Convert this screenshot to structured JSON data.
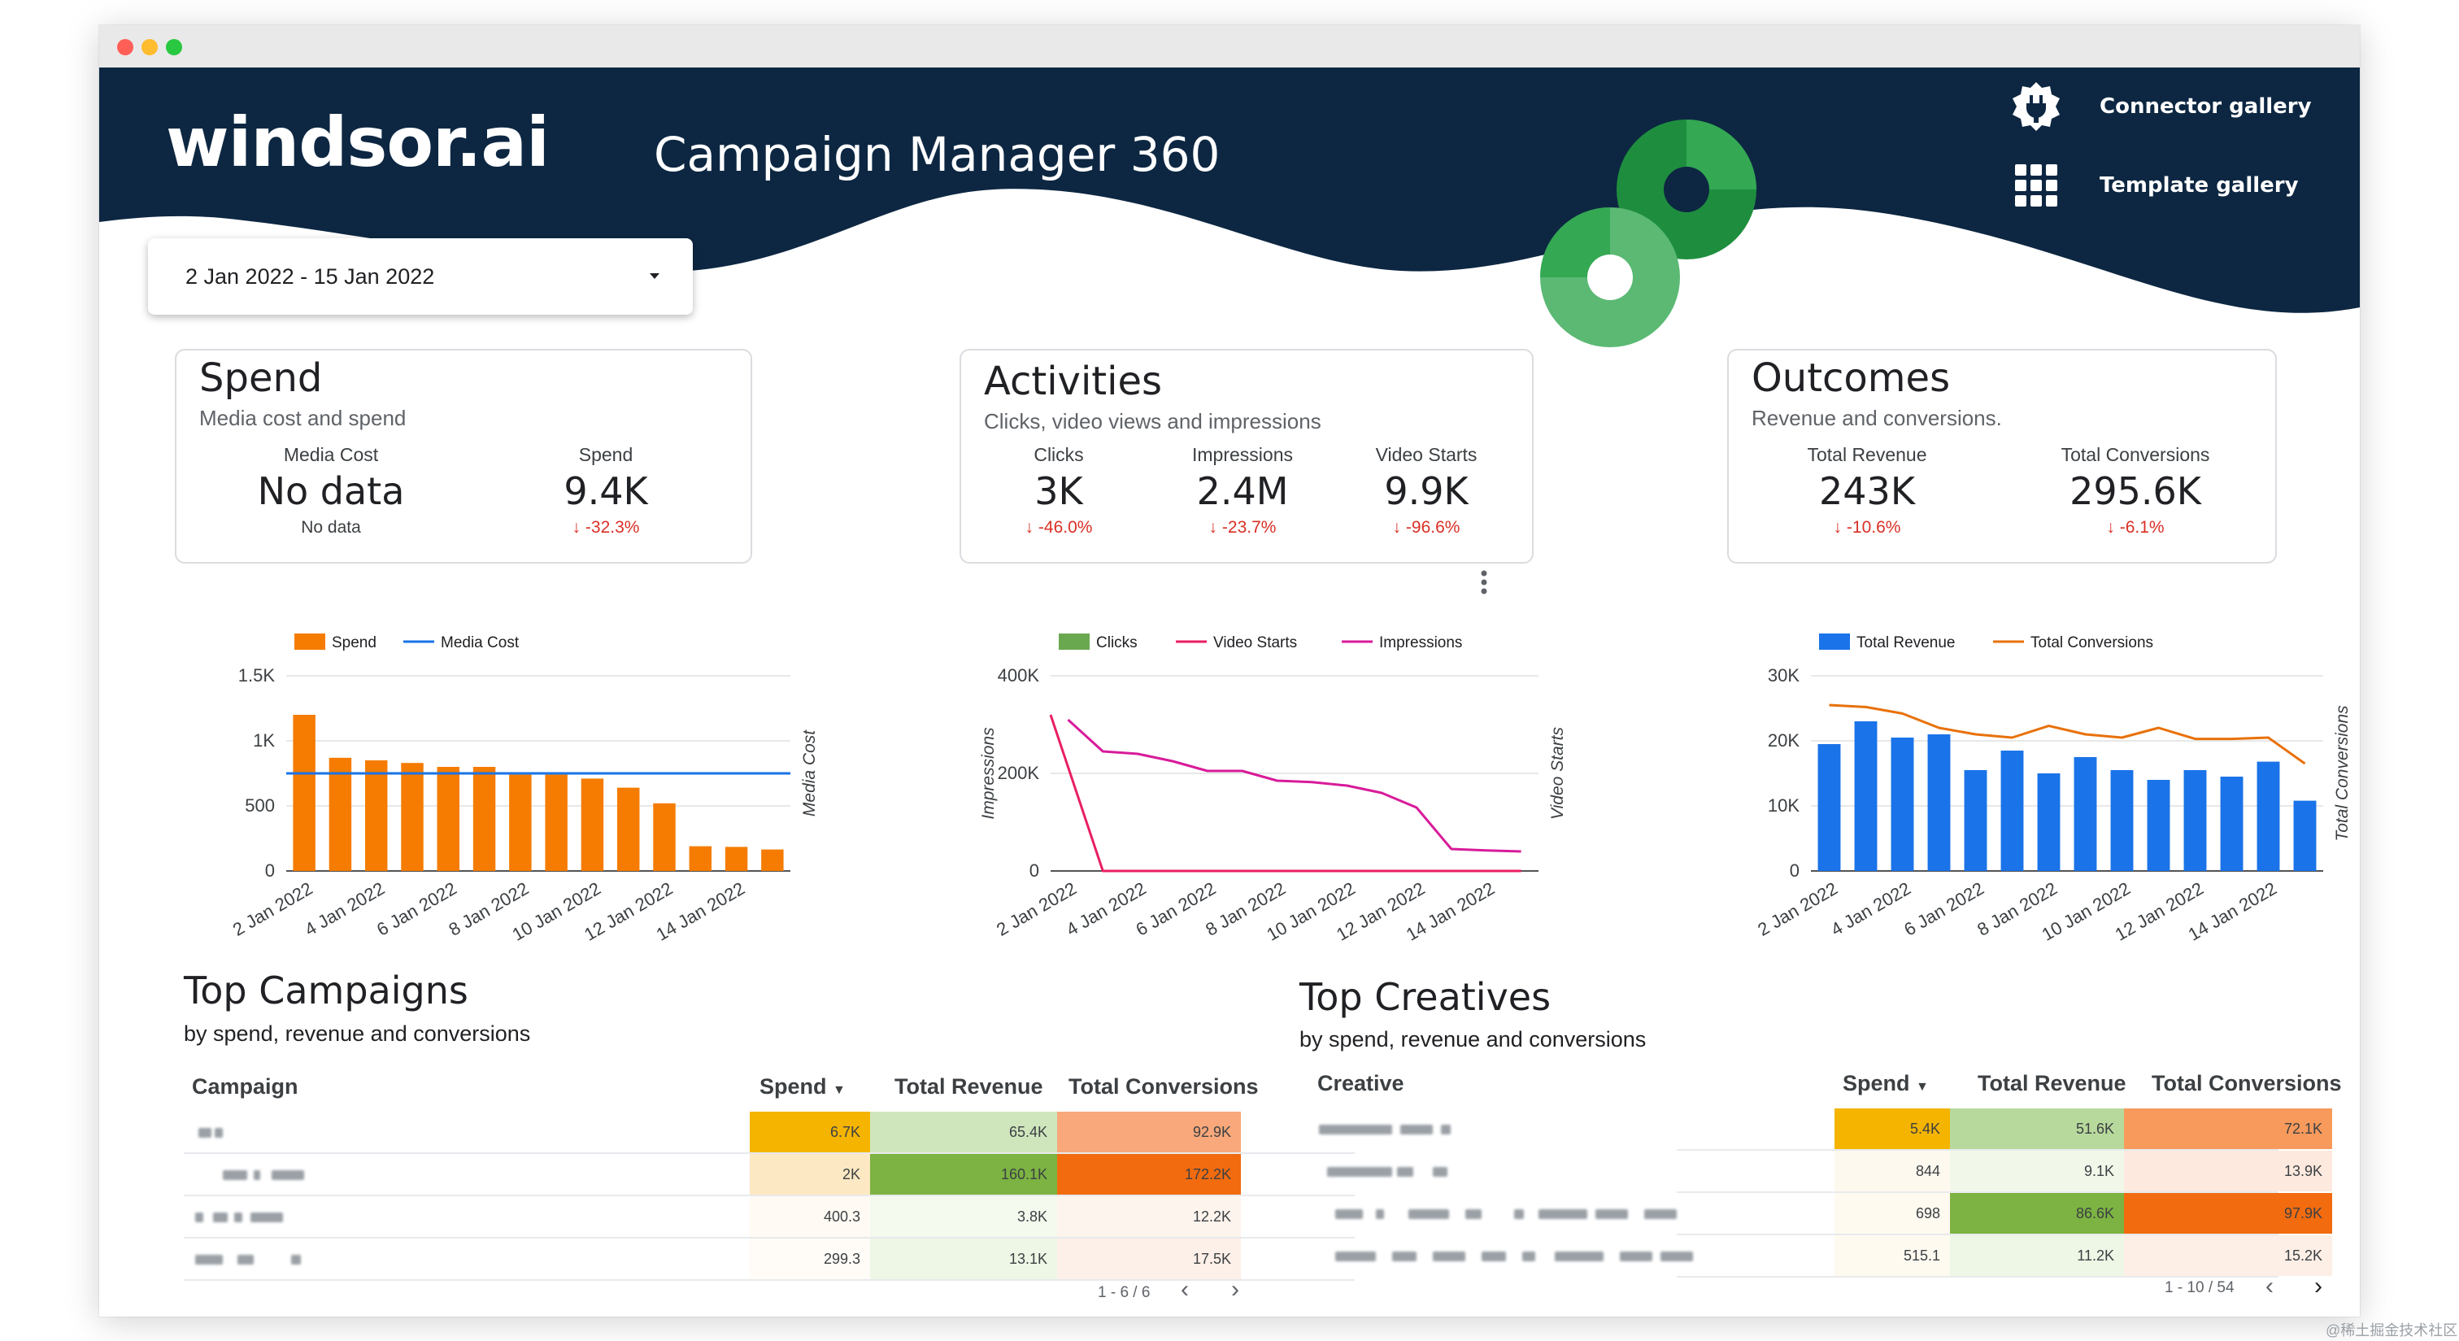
{
  "header": {
    "logo": "windsor.ai",
    "title": "Campaign Manager 360",
    "connector_gallery": "Connector gallery",
    "template_gallery": "Template gallery"
  },
  "date_range": {
    "value": "2 Jan 2022 - 15 Jan 2022"
  },
  "cards": {
    "spend": {
      "title": "Spend",
      "subtitle": "Media cost and spend",
      "kpis": [
        {
          "label": "Media Cost",
          "value": "No data",
          "delta": "No data"
        },
        {
          "label": "Spend",
          "value": "9.4K",
          "delta": "-32.3%"
        }
      ]
    },
    "activities": {
      "title": "Activities",
      "subtitle": "Clicks, video views and impressions",
      "kpis": [
        {
          "label": "Clicks",
          "value": "3K",
          "delta": "-46.0%"
        },
        {
          "label": "Impressions",
          "value": "2.4M",
          "delta": "-23.7%"
        },
        {
          "label": "Video Starts",
          "value": "9.9K",
          "delta": "-96.6%"
        }
      ]
    },
    "outcomes": {
      "title": "Outcomes",
      "subtitle": "Revenue and conversions.",
      "kpis": [
        {
          "label": "Total Revenue",
          "value": "243K",
          "delta": "-10.6%"
        },
        {
          "label": "Total Conversions",
          "value": "295.6K",
          "delta": "-6.1%"
        }
      ]
    }
  },
  "chart_data": [
    {
      "type": "bar",
      "x": [
        "2 Jan 2022",
        "3 Jan 2022",
        "4 Jan 2022",
        "5 Jan 2022",
        "6 Jan 2022",
        "7 Jan 2022",
        "8 Jan 2022",
        "9 Jan 2022",
        "10 Jan 2022",
        "11 Jan 2022",
        "12 Jan 2022",
        "13 Jan 2022",
        "14 Jan 2022",
        "15 Jan 2022"
      ],
      "x_tick_labels": [
        "2 Jan 2022",
        "4 Jan 2022",
        "6 Jan 2022",
        "8 Jan 2022",
        "10 Jan 2022",
        "12 Jan 2022",
        "14 Jan 2022"
      ],
      "series": [
        {
          "name": "Spend",
          "type": "bar",
          "color": "#f57c00",
          "values": [
            1200,
            870,
            850,
            830,
            800,
            800,
            740,
            740,
            710,
            640,
            520,
            190,
            185,
            165
          ]
        },
        {
          "name": "Media Cost",
          "type": "line",
          "color": "#1a73e8",
          "values": [
            750,
            750,
            750,
            750,
            750,
            750,
            750,
            750,
            750,
            750,
            750,
            750,
            750,
            750
          ]
        }
      ],
      "y_ticks": [
        "0",
        "500",
        "1K",
        "1.5K"
      ],
      "ylim": [
        0,
        1500
      ],
      "y2label": "Media Cost",
      "legend": "top"
    },
    {
      "type": "line",
      "x": [
        "2 Jan 2022",
        "3 Jan 2022",
        "4 Jan 2022",
        "5 Jan 2022",
        "6 Jan 2022",
        "7 Jan 2022",
        "8 Jan 2022",
        "9 Jan 2022",
        "10 Jan 2022",
        "11 Jan 2022",
        "12 Jan 2022",
        "13 Jan 2022",
        "14 Jan 2022",
        "15 Jan 2022"
      ],
      "x_tick_labels": [
        "2 Jan 2022",
        "4 Jan 2022",
        "6 Jan 2022",
        "8 Jan 2022",
        "10 Jan 2022",
        "12 Jan 2022",
        "14 Jan 2022"
      ],
      "series": [
        {
          "name": "Clicks",
          "type": "bar",
          "color": "#6aa84f",
          "values": [
            0,
            0,
            0,
            0,
            0,
            0,
            0,
            0,
            0,
            0,
            0,
            0,
            0,
            0
          ]
        },
        {
          "name": "Video Starts",
          "type": "line",
          "color": "#e91e63",
          "values": [
            320000,
            0,
            0,
            0,
            0,
            0,
            0,
            0,
            0,
            0,
            0,
            0,
            0,
            0
          ]
        },
        {
          "name": "Impressions",
          "type": "line",
          "color": "#d81b9a",
          "values": [
            310000,
            245000,
            240000,
            225000,
            205000,
            205000,
            185000,
            182000,
            175000,
            160000,
            130000,
            45000,
            42000,
            40000
          ]
        }
      ],
      "y_ticks": [
        "0",
        "200K",
        "400K"
      ],
      "ylim": [
        0,
        400000
      ],
      "ylabel": "Impressions",
      "y2label": "Video Starts",
      "legend": "top"
    },
    {
      "type": "bar",
      "x": [
        "2 Jan 2022",
        "3 Jan 2022",
        "4 Jan 2022",
        "5 Jan 2022",
        "6 Jan 2022",
        "7 Jan 2022",
        "8 Jan 2022",
        "9 Jan 2022",
        "10 Jan 2022",
        "11 Jan 2022",
        "12 Jan 2022",
        "13 Jan 2022",
        "14 Jan 2022",
        "15 Jan 2022"
      ],
      "x_tick_labels": [
        "2 Jan 2022",
        "4 Jan 2022",
        "6 Jan 2022",
        "8 Jan 2022",
        "10 Jan 2022",
        "12 Jan 2022",
        "14 Jan 2022"
      ],
      "series": [
        {
          "name": "Total Revenue",
          "type": "bar",
          "color": "#1a73e8",
          "values": [
            19500,
            23000,
            20500,
            21000,
            15500,
            18500,
            15000,
            17500,
            15500,
            14000,
            15500,
            14500,
            16800,
            10800
          ]
        },
        {
          "name": "Total Conversions",
          "type": "line",
          "color": "#e8710a",
          "values": [
            25500,
            25200,
            24200,
            22000,
            21000,
            20500,
            22300,
            21000,
            20500,
            22000,
            20300,
            20300,
            20500,
            16500
          ]
        }
      ],
      "y_ticks": [
        "0",
        "10K",
        "20K",
        "30K"
      ],
      "ylim": [
        0,
        30000
      ],
      "y2label": "Total Conversions",
      "legend": "top"
    }
  ],
  "campaigns": {
    "title": "Top Campaigns",
    "subtitle": "by spend, revenue and conversions",
    "headers": [
      "Campaign",
      "Spend",
      "Total Revenue",
      "Total Conversions"
    ],
    "rows": [
      {
        "spend": "6.7K",
        "revenue": "65.4K",
        "conversions": "92.9K"
      },
      {
        "spend": "2K",
        "revenue": "160.1K",
        "conversions": "172.2K"
      },
      {
        "spend": "400.3",
        "revenue": "3.8K",
        "conversions": "12.2K"
      },
      {
        "spend": "299.3",
        "revenue": "13.1K",
        "conversions": "17.5K"
      }
    ],
    "pager": "1 - 6 / 6"
  },
  "creatives": {
    "title": "Top Creatives",
    "subtitle": "by spend, revenue and conversions",
    "headers": [
      "Creative",
      "Spend",
      "Total Revenue",
      "Total Conversions"
    ],
    "rows": [
      {
        "spend": "5.4K",
        "revenue": "51.6K",
        "conversions": "72.1K"
      },
      {
        "spend": "844",
        "revenue": "9.1K",
        "conversions": "13.9K"
      },
      {
        "spend": "698",
        "revenue": "86.6K",
        "conversions": "97.9K"
      },
      {
        "spend": "515.1",
        "revenue": "11.2K",
        "conversions": "15.2K"
      }
    ],
    "pager": "1 - 10 / 54"
  },
  "watermark": "@稀土掘金技术社区",
  "colors": {
    "navy": "#0d2742",
    "green": "#34a853",
    "orange": "#f57c00",
    "blue": "#1a73e8",
    "magenta": "#d81b9a"
  }
}
